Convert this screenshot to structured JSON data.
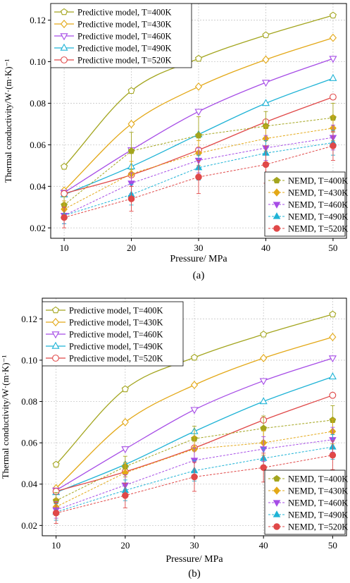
{
  "chart_data": [
    {
      "type": "line",
      "panel_label": "(a)",
      "xlabel": "Pressure/ MPa",
      "ylabel": "Thermal conductivity/W·(m·K)⁻¹",
      "x": [
        10,
        20,
        30,
        40,
        50
      ],
      "xlim": [
        8,
        52
      ],
      "ylim": [
        0.015,
        0.128
      ],
      "xticks": [
        10,
        20,
        30,
        40,
        50
      ],
      "yticks": [
        0.02,
        0.04,
        0.06,
        0.08,
        0.1,
        0.12
      ],
      "ytick_labels": [
        "0.02",
        "0.04",
        "0.06",
        "0.08",
        "0.10",
        "0.12"
      ],
      "grid": true,
      "series": [
        {
          "name": "Predictive model, T=400K",
          "group": "model",
          "marker": "pentagon",
          "color": "#a3a51e",
          "values": [
            0.0495,
            0.086,
            0.1015,
            0.1128,
            0.1223
          ]
        },
        {
          "name": "Predictive model, T=430K",
          "group": "model",
          "marker": "diamond",
          "color": "#e3a817",
          "values": [
            0.038,
            0.07,
            0.088,
            0.101,
            0.1115
          ]
        },
        {
          "name": "Predictive model, T=460K",
          "group": "model",
          "marker": "triangle-down",
          "color": "#a64ce6",
          "values": [
            0.037,
            0.0575,
            0.076,
            0.09,
            0.1015
          ]
        },
        {
          "name": "Predictive model, T=490K",
          "group": "model",
          "marker": "triangle-up",
          "color": "#1fb3d6",
          "values": [
            0.036,
            0.0495,
            0.065,
            0.08,
            0.092
          ]
        },
        {
          "name": "Predictive model, T=520K",
          "group": "model",
          "marker": "circle",
          "color": "#e04848",
          "values": [
            0.0365,
            0.0455,
            0.0575,
            0.071,
            0.083
          ]
        },
        {
          "name": "NEMD, T=400K",
          "group": "nemd",
          "marker": "pentagon",
          "color": "#a3a51e",
          "values": [
            0.031,
            0.057,
            0.0645,
            0.069,
            0.073
          ],
          "errors": [
            0.004,
            0.009,
            0.009,
            0.007,
            0.007
          ]
        },
        {
          "name": "NEMD, T=430K",
          "group": "nemd",
          "marker": "diamond",
          "color": "#e3a817",
          "values": [
            0.029,
            0.046,
            0.056,
            0.063,
            0.068
          ],
          "errors": [
            0.004,
            0.006,
            0.006,
            0.006,
            0.006
          ]
        },
        {
          "name": "NEMD, T=460K",
          "group": "nemd",
          "marker": "triangle-down",
          "color": "#a64ce6",
          "values": [
            0.026,
            0.0415,
            0.0525,
            0.0585,
            0.0635
          ],
          "errors": [
            0.004,
            0.005,
            0.006,
            0.006,
            0.006
          ]
        },
        {
          "name": "NEMD, T=490K",
          "group": "nemd",
          "marker": "triangle-up",
          "color": "#1fb3d6",
          "values": [
            0.026,
            0.036,
            0.049,
            0.056,
            0.061
          ],
          "errors": [
            0.004,
            0.005,
            0.006,
            0.006,
            0.006
          ]
        },
        {
          "name": "NEMD, T=520K",
          "group": "nemd",
          "marker": "circle",
          "color": "#e04848",
          "values": [
            0.025,
            0.034,
            0.0445,
            0.0505,
            0.0595
          ],
          "errors": [
            0.005,
            0.006,
            0.008,
            0.009,
            0.007
          ]
        }
      ]
    },
    {
      "type": "line",
      "panel_label": "(b)",
      "xlabel": "Pressure/ MPa",
      "ylabel": "Thermal conductivity/W·(m·K)⁻¹",
      "x": [
        10,
        20,
        30,
        40,
        50
      ],
      "xlim": [
        8,
        52
      ],
      "ylim": [
        0.015,
        0.13
      ],
      "xticks": [
        10,
        20,
        30,
        40,
        50
      ],
      "yticks": [
        0.02,
        0.04,
        0.06,
        0.08,
        0.1,
        0.12
      ],
      "ytick_labels": [
        "0.02",
        "0.04",
        "0.06",
        "0.08",
        "0.10",
        "0.12"
      ],
      "grid": true,
      "series": [
        {
          "name": "Predictive model, T=400K",
          "group": "model",
          "marker": "pentagon",
          "color": "#a3a51e",
          "values": [
            0.0495,
            0.086,
            0.1013,
            0.1125,
            0.1222
          ]
        },
        {
          "name": "Predictive model, T=430K",
          "group": "model",
          "marker": "diamond",
          "color": "#e3a817",
          "values": [
            0.038,
            0.07,
            0.088,
            0.101,
            0.1112
          ]
        },
        {
          "name": "Predictive model, T=460K",
          "group": "model",
          "marker": "triangle-down",
          "color": "#a64ce6",
          "values": [
            0.037,
            0.057,
            0.076,
            0.09,
            0.101
          ]
        },
        {
          "name": "Predictive model, T=490K",
          "group": "model",
          "marker": "triangle-up",
          "color": "#1fb3d6",
          "values": [
            0.036,
            0.0495,
            0.0655,
            0.08,
            0.092
          ]
        },
        {
          "name": "Predictive model, T=520K",
          "group": "model",
          "marker": "circle",
          "color": "#e04848",
          "values": [
            0.0365,
            0.046,
            0.0575,
            0.071,
            0.083
          ]
        },
        {
          "name": "NEMD, T=400K",
          "group": "nemd",
          "marker": "pentagon",
          "color": "#a3a51e",
          "values": [
            0.032,
            0.0485,
            0.062,
            0.067,
            0.071
          ],
          "errors": [
            0.004,
            0.005,
            0.006,
            0.006,
            0.007
          ]
        },
        {
          "name": "NEMD, T=430K",
          "group": "nemd",
          "marker": "diamond",
          "color": "#e3a817",
          "values": [
            0.029,
            0.0455,
            0.057,
            0.06,
            0.0655
          ],
          "errors": [
            0.004,
            0.005,
            0.006,
            0.006,
            0.006
          ]
        },
        {
          "name": "NEMD, T=460K",
          "group": "nemd",
          "marker": "triangle-down",
          "color": "#a64ce6",
          "values": [
            0.0275,
            0.0395,
            0.0515,
            0.057,
            0.0615
          ],
          "errors": [
            0.004,
            0.005,
            0.006,
            0.006,
            0.006
          ]
        },
        {
          "name": "NEMD, T=490K",
          "group": "nemd",
          "marker": "triangle-up",
          "color": "#1fb3d6",
          "values": [
            0.0265,
            0.037,
            0.0465,
            0.0525,
            0.058
          ],
          "errors": [
            0.004,
            0.005,
            0.005,
            0.005,
            0.006
          ]
        },
        {
          "name": "NEMD, T=520K",
          "group": "nemd",
          "marker": "circle",
          "color": "#e04848",
          "values": [
            0.026,
            0.0345,
            0.0435,
            0.048,
            0.054
          ],
          "errors": [
            0.005,
            0.006,
            0.007,
            0.007,
            0.007
          ]
        }
      ]
    }
  ]
}
